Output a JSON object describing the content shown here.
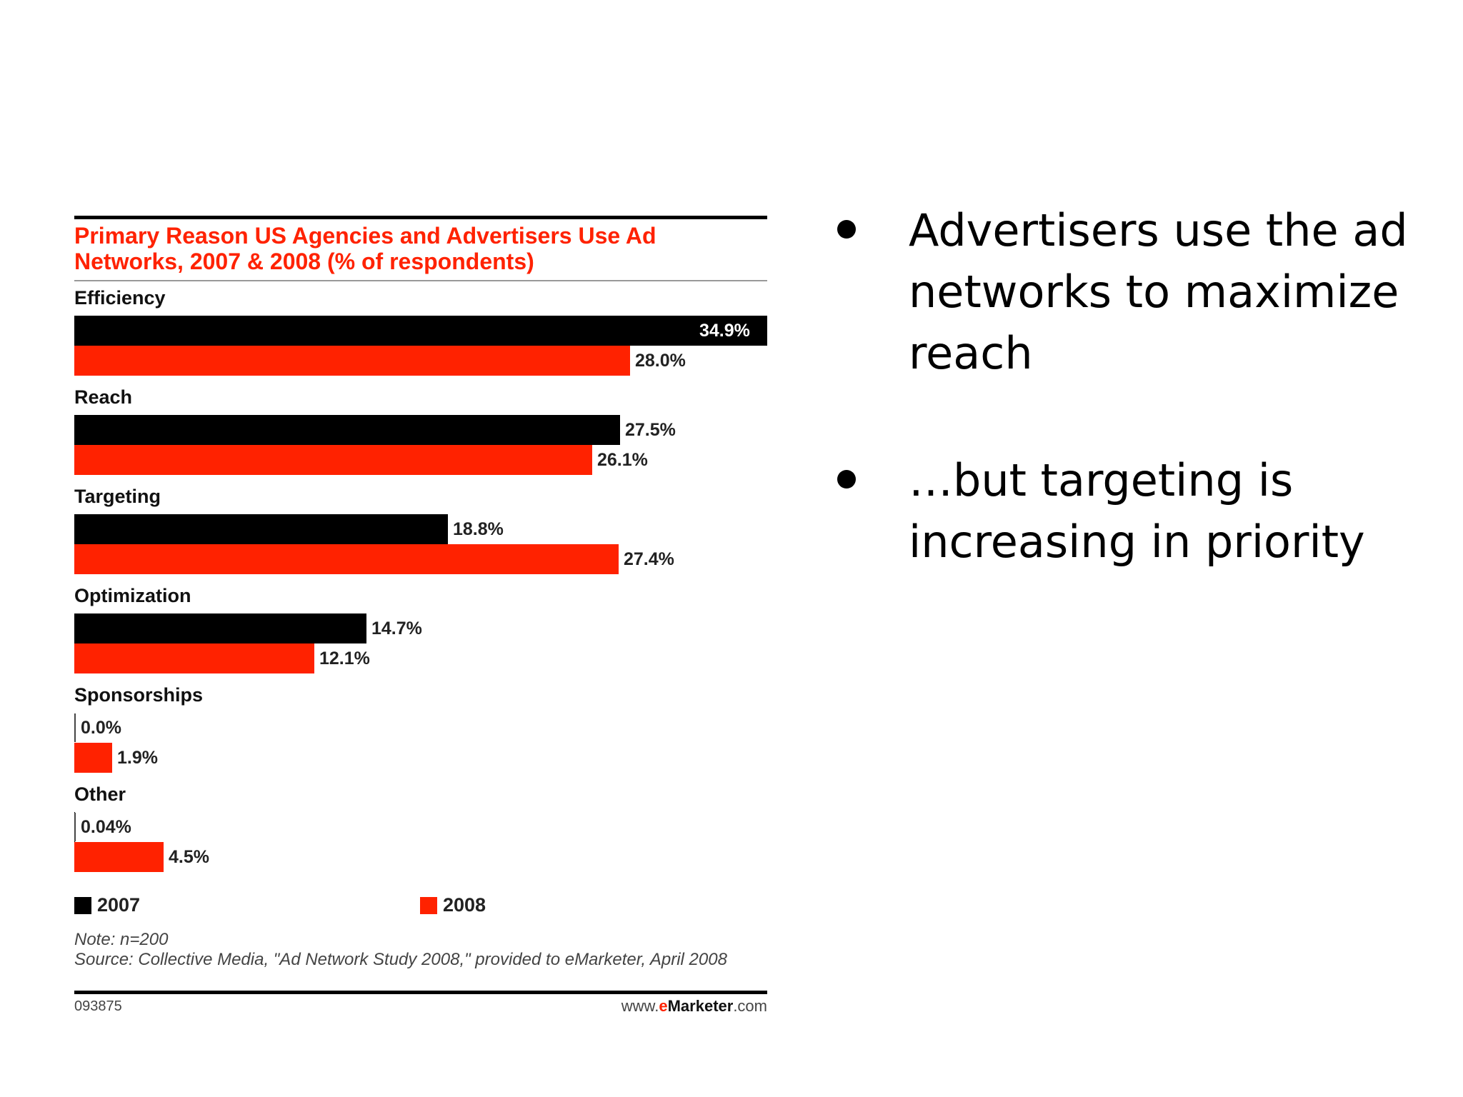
{
  "chart_data": {
    "type": "bar",
    "orientation": "horizontal",
    "title": "Primary Reason US Agencies and Advertisers Use Ad Networks, 2007 & 2008 (% of respondents)",
    "categories": [
      "Efficiency",
      "Reach",
      "Targeting",
      "Optimization",
      "Sponsorships",
      "Other"
    ],
    "series": [
      {
        "name": "2007",
        "color": "#000000",
        "values": [
          34.9,
          27.5,
          18.8,
          14.7,
          0.0,
          0.04
        ],
        "labels": [
          "34.9%",
          "27.5%",
          "18.8%",
          "14.7%",
          "0.0%",
          "0.04%"
        ]
      },
      {
        "name": "2008",
        "color": "#ff2200",
        "values": [
          28.0,
          26.1,
          27.4,
          12.1,
          1.9,
          4.5
        ],
        "labels": [
          "28.0%",
          "26.1%",
          "27.4%",
          "12.1%",
          "1.9%",
          "4.5%"
        ]
      }
    ],
    "xlim": [
      0,
      34.9
    ],
    "grid": false,
    "legend_position": "bottom",
    "note": "Note: n=200",
    "source": "Source: Collective Media, \"Ad Network Study 2008,\" provided to eMarketer, April 2008",
    "chart_id": "093875",
    "site": {
      "prefix": "www.",
      "e": "e",
      "brand": "Marketer",
      "suffix": ".com"
    }
  },
  "bullets": [
    {
      "text": "Advertisers use the ad networks to maximize reach"
    },
    {
      "text": "…but targeting is increasing in priority"
    }
  ]
}
